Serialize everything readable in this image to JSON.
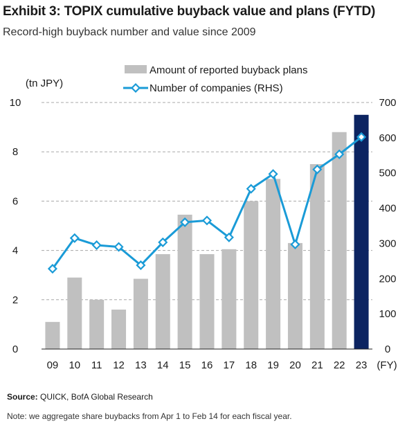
{
  "header": {
    "title": "Exhibit 3: TOPIX cumulative buyback value and plans (FYTD)",
    "subtitle": "Record-high buyback number and value since 2009"
  },
  "footer": {
    "source_label": "Source:",
    "source_text": " QUICK, BofA Global Research",
    "note": "Note: we aggregate share buybacks from Apr 1 to Feb 14 for each fiscal year."
  },
  "chart_data": {
    "type": "bar",
    "categories": [
      "09",
      "10",
      "11",
      "12",
      "13",
      "14",
      "15",
      "16",
      "17",
      "18",
      "19",
      "20",
      "21",
      "22",
      "23"
    ],
    "xlabel": "(FY)",
    "ylabel": "(tn JPY)",
    "ylim": [
      0,
      10
    ],
    "y2lim": [
      0,
      700
    ],
    "yticks": [
      0,
      2,
      4,
      6,
      8,
      10
    ],
    "y2ticks": [
      0,
      100,
      200,
      300,
      400,
      500,
      600,
      700
    ],
    "grid": true,
    "legend_position": "top",
    "series": [
      {
        "name": "Amount of reported buyback plans",
        "type": "bar",
        "axis": "left",
        "color": "#c0c0c0",
        "highlight_color": "#0c2461",
        "values": [
          1.1,
          2.9,
          2.0,
          1.6,
          2.85,
          3.85,
          5.45,
          3.85,
          4.05,
          6.0,
          6.9,
          4.3,
          7.5,
          8.8,
          9.5
        ]
      },
      {
        "name": "Number of companies (RHS)",
        "type": "line",
        "axis": "right",
        "color": "#1a9bd7",
        "values": [
          228,
          315,
          295,
          290,
          238,
          303,
          360,
          365,
          317,
          455,
          497,
          297,
          510,
          553,
          602
        ]
      }
    ]
  }
}
